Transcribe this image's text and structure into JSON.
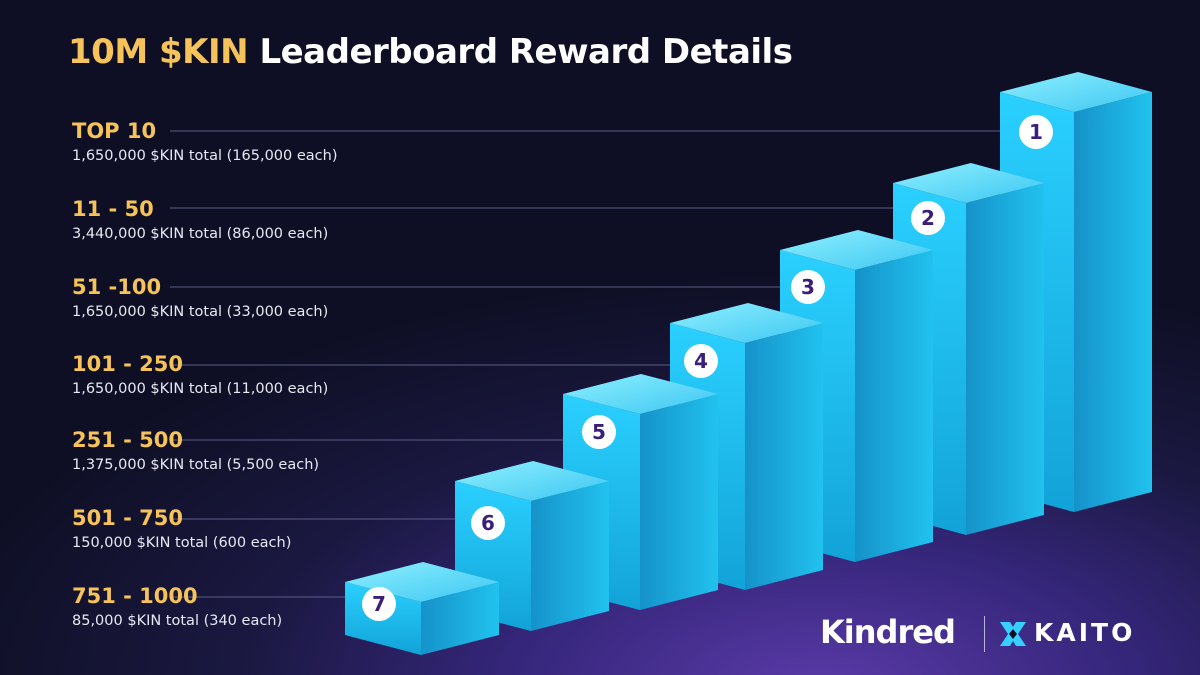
{
  "title": {
    "accent": "10M $KIN",
    "rest": "Leaderboard Reward Details"
  },
  "tiers": [
    {
      "rank": "1",
      "range": "TOP 10",
      "desc": "1,650,000 $KIN total (165,000 each)"
    },
    {
      "rank": "2",
      "range": "11 - 50",
      "desc": "3,440,000 $KIN total (86,000 each)"
    },
    {
      "rank": "3",
      "range": "51 -100",
      "desc": "1,650,000 $KIN total (33,000 each)"
    },
    {
      "rank": "4",
      "range": "101 - 250",
      "desc": "1,650,000 $KIN total (11,000 each)"
    },
    {
      "rank": "5",
      "range": "251 - 500",
      "desc": "1,375,000 $KIN total (5,500 each)"
    },
    {
      "rank": "6",
      "range": "501 - 750",
      "desc": "150,000 $KIN total (600 each)"
    },
    {
      "rank": "7",
      "range": "751 - 1000",
      "desc": "85,000 $KIN total (340 each)"
    }
  ],
  "logos": {
    "kindred": "Kindred",
    "kaito": "KAITO"
  },
  "colors": {
    "accent": "#f6c35a",
    "block_front": "#1fb8e6",
    "block_top": "#5fdcff",
    "badge_text": "#3a1f7a"
  }
}
